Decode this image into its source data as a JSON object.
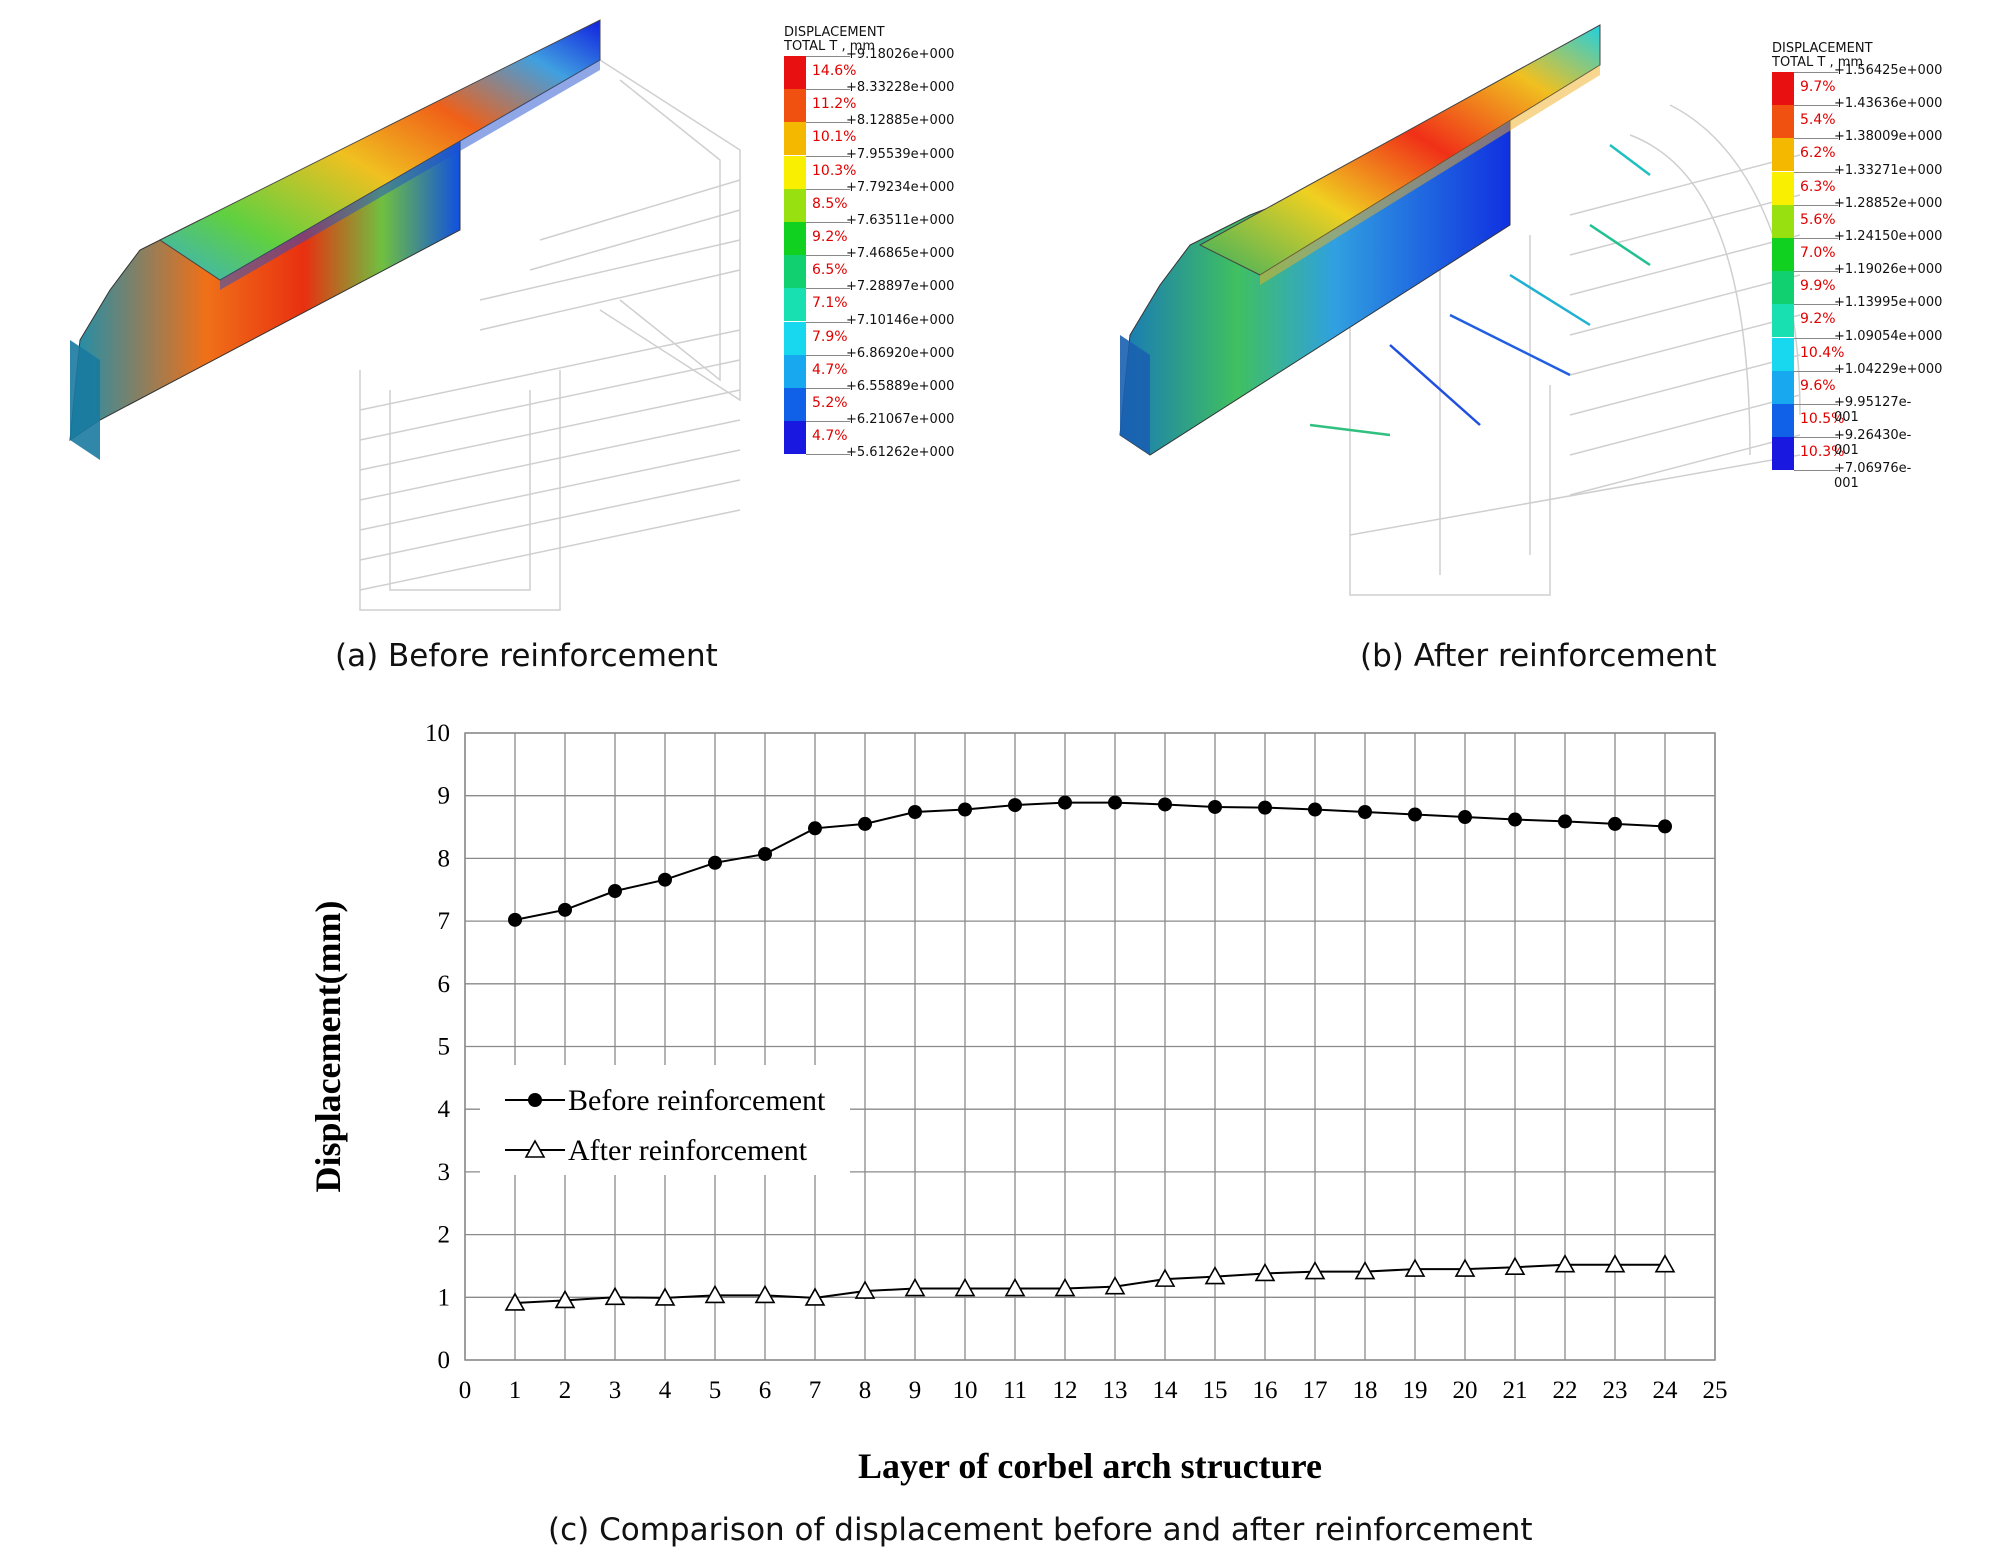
{
  "panels": {
    "a": {
      "caption": "(a) Before reinforcement",
      "legend_title_1": "DISPLACEMENT",
      "legend_title_2": "TOTAL T , mm",
      "values": [
        "+9.18026e+000",
        "+8.33228e+000",
        "+8.12885e+000",
        "+7.95539e+000",
        "+7.79234e+000",
        "+7.63511e+000",
        "+7.46865e+000",
        "+7.28897e+000",
        "+7.10146e+000",
        "+6.86920e+000",
        "+6.55889e+000",
        "+6.21067e+000",
        "+5.61262e+000"
      ],
      "percents": [
        "14.6%",
        "11.2%",
        "10.1%",
        "10.3%",
        "8.5%",
        "9.2%",
        "6.5%",
        "7.1%",
        "7.9%",
        "4.7%",
        "5.2%",
        "4.7%"
      ]
    },
    "b": {
      "caption": "(b) After reinforcement",
      "legend_title_1": "DISPLACEMENT",
      "legend_title_2": "TOTAL T , mm",
      "values": [
        "+1.56425e+000",
        "+1.43636e+000",
        "+1.38009e+000",
        "+1.33271e+000",
        "+1.28852e+000",
        "+1.24150e+000",
        "+1.19026e+000",
        "+1.13995e+000",
        "+1.09054e+000",
        "+1.04229e+000",
        "+9.95127e-001",
        "+9.26430e-001",
        "+7.06976e-001"
      ],
      "percents": [
        "9.7%",
        "5.4%",
        "6.2%",
        "6.3%",
        "5.6%",
        "7.0%",
        "9.9%",
        "9.2%",
        "10.4%",
        "9.6%",
        "10.5%",
        "10.3%"
      ]
    },
    "c": {
      "caption": "(c) Comparison of displacement before and after reinforcement"
    }
  },
  "legend_colors": [
    "#e81010",
    "#f05010",
    "#f4b800",
    "#f8f000",
    "#98e010",
    "#10d020",
    "#10d070",
    "#18e0b0",
    "#18d8f0",
    "#18a8f0",
    "#1060e8",
    "#1818e0"
  ],
  "chart_data": {
    "type": "line",
    "xlabel": "Layer of corbel arch structure",
    "ylabel": "Displacement(mm)",
    "xlim": [
      0,
      25
    ],
    "ylim": [
      0,
      10
    ],
    "grid": true,
    "legend_position": "center-left",
    "x": [
      1,
      2,
      3,
      4,
      5,
      6,
      7,
      8,
      9,
      10,
      11,
      12,
      13,
      14,
      15,
      16,
      17,
      18,
      19,
      20,
      21,
      22,
      23,
      24
    ],
    "series": [
      {
        "name": "Before reinforcement",
        "marker": "filled-circle",
        "values": [
          7.02,
          7.18,
          7.48,
          7.66,
          7.93,
          8.07,
          8.48,
          8.55,
          8.74,
          8.78,
          8.85,
          8.89,
          8.89,
          8.86,
          8.82,
          8.81,
          8.78,
          8.74,
          8.7,
          8.66,
          8.62,
          8.59,
          8.55,
          8.51
        ]
      },
      {
        "name": "After reinforcement",
        "marker": "open-triangle",
        "values": [
          0.91,
          0.95,
          1.0,
          0.99,
          1.03,
          1.03,
          0.99,
          1.1,
          1.14,
          1.14,
          1.14,
          1.14,
          1.17,
          1.29,
          1.33,
          1.38,
          1.41,
          1.41,
          1.45,
          1.45,
          1.48,
          1.52,
          1.52,
          1.52
        ]
      }
    ]
  }
}
